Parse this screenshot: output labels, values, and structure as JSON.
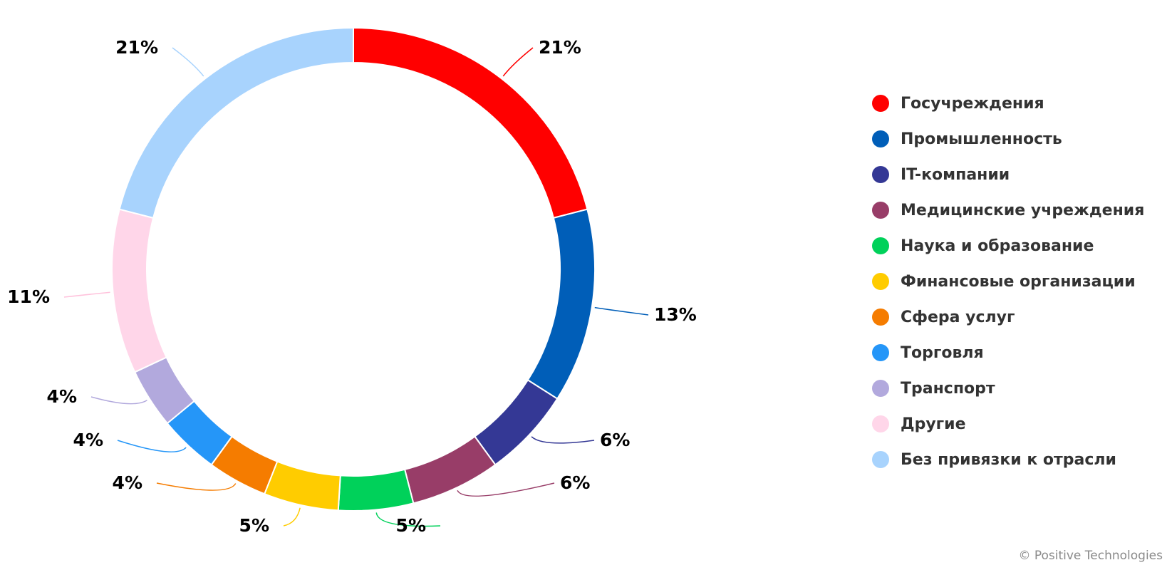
{
  "chart_data": {
    "type": "pie",
    "donut": true,
    "slices": [
      {
        "label": "Госучреждения",
        "value": 21,
        "value_label": "21%",
        "color": "#ff0000"
      },
      {
        "label": "Промышленность",
        "value": 13,
        "value_label": "13%",
        "color": "#005eb8"
      },
      {
        "label": "IT-компании",
        "value": 6,
        "value_label": "6%",
        "color": "#343895"
      },
      {
        "label": "Медицинские учреждения",
        "value": 6,
        "value_label": "6%",
        "color": "#983d68"
      },
      {
        "label": "Наука и образование",
        "value": 5,
        "value_label": "5%",
        "color": "#00d15a"
      },
      {
        "label": "Финансовые организации",
        "value": 5,
        "value_label": "5%",
        "color": "#ffcc00"
      },
      {
        "label": "Сфера услуг",
        "value": 4,
        "value_label": "4%",
        "color": "#f57c00"
      },
      {
        "label": "Торговля",
        "value": 4,
        "value_label": "4%",
        "color": "#2596f8"
      },
      {
        "label": "Транспорт",
        "value": 4,
        "value_label": "4%",
        "color": "#b2a9dd"
      },
      {
        "label": "Другие",
        "value": 11,
        "value_label": "11%",
        "color": "#ffd6e9"
      },
      {
        "label": "Без привязки к отрасли",
        "value": 21,
        "value_label": "21%",
        "color": "#a8d3fd"
      }
    ],
    "start": "top, clockwise",
    "legend_position": "right"
  },
  "credit": "© Positive Technologies"
}
